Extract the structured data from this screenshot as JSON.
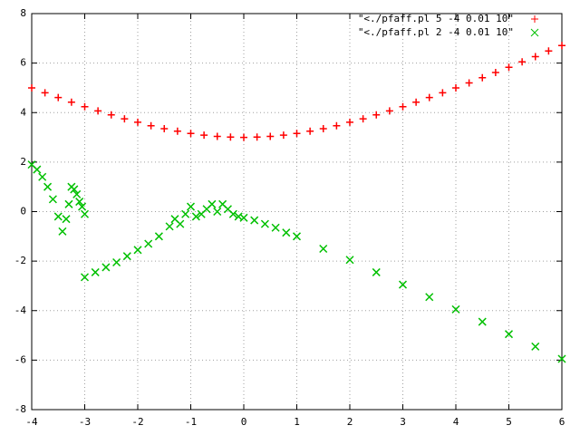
{
  "chart_data": {
    "type": "scatter",
    "xlim": [
      -4,
      6
    ],
    "ylim": [
      -8,
      8
    ],
    "xticks": [
      -4,
      -3,
      -2,
      -1,
      0,
      1,
      2,
      3,
      4,
      5,
      6
    ],
    "yticks": [
      -8,
      -6,
      -4,
      -2,
      0,
      2,
      4,
      6,
      8
    ],
    "grid": true,
    "legend": "top-right",
    "series": [
      {
        "name": "\"<./pfaff.pl 5 -4 0.01 10\"",
        "color": "#ff0000",
        "marker": "+",
        "x": [
          -4,
          -3.75,
          -3.5,
          -3.25,
          -3,
          -2.75,
          -2.5,
          -2.25,
          -2,
          -1.75,
          -1.5,
          -1.25,
          -1,
          -0.75,
          -0.5,
          -0.25,
          0,
          0.25,
          0.5,
          0.75,
          1,
          1.25,
          1.5,
          1.75,
          2,
          2.25,
          2.5,
          2.75,
          3,
          3.25,
          3.5,
          3.75,
          4,
          4.25,
          4.5,
          4.75,
          5,
          5.25,
          5.5,
          5.75,
          6
        ],
        "values": [
          5,
          4.8,
          4.61,
          4.42,
          4.24,
          4.07,
          3.91,
          3.75,
          3.61,
          3.47,
          3.35,
          3.25,
          3.16,
          3.09,
          3.04,
          3.01,
          3,
          3.01,
          3.04,
          3.09,
          3.16,
          3.25,
          3.35,
          3.47,
          3.61,
          3.75,
          3.91,
          4.07,
          4.24,
          4.42,
          4.61,
          4.8,
          5,
          5.2,
          5.41,
          5.62,
          5.83,
          6.05,
          6.26,
          6.49,
          6.71
        ]
      },
      {
        "name": "\"<./pfaff.pl 2 -4 0.01 10\"",
        "color": "#00c000",
        "marker": "x",
        "x": [
          -4,
          -3.9,
          -3.8,
          -3.7,
          -3.6,
          -3.5,
          -3.42,
          -3.35,
          -3.3,
          -3.25,
          -3.2,
          -3.15,
          -3.1,
          -3.05,
          -3,
          -3,
          -2.8,
          -2.6,
          -2.4,
          -2.2,
          -2,
          -1.8,
          -1.6,
          -1.4,
          -1.3,
          -1.2,
          -1.1,
          -1,
          -0.9,
          -0.8,
          -0.7,
          -0.6,
          -0.5,
          -0.4,
          -0.3,
          -0.2,
          -0.1,
          0,
          0.2,
          0.4,
          0.6,
          0.8,
          1,
          1.5,
          2,
          2.5,
          3,
          3.5,
          4,
          4.5,
          5,
          5.5,
          6
        ],
        "values": [
          1.9,
          1.7,
          1.4,
          1,
          0.5,
          -0.2,
          -0.8,
          -0.3,
          0.3,
          1,
          0.9,
          0.7,
          0.4,
          0.2,
          -0.1,
          -2.65,
          -2.45,
          -2.25,
          -2.05,
          -1.8,
          -1.55,
          -1.3,
          -1,
          -0.6,
          -0.3,
          -0.5,
          -0.1,
          0.2,
          -0.2,
          -0.1,
          0.1,
          0.3,
          0,
          0.3,
          0.1,
          -0.1,
          -0.2,
          -0.25,
          -0.35,
          -0.5,
          -0.65,
          -0.85,
          -1,
          -1.5,
          -1.95,
          -2.45,
          -2.95,
          -3.45,
          -3.95,
          -4.45,
          -4.95,
          -5.45,
          -5.95
        ]
      }
    ]
  }
}
